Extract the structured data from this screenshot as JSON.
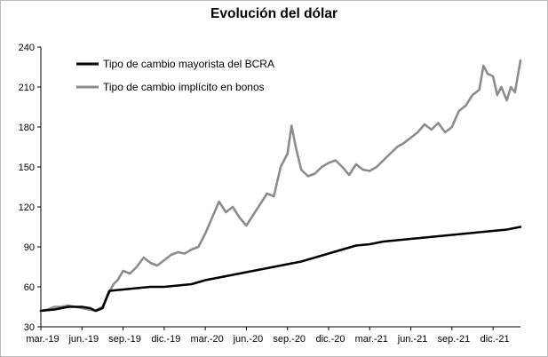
{
  "chart_data": {
    "type": "line",
    "title": "Evolución del dólar",
    "xlabel": "",
    "ylabel": "",
    "ylim": [
      30,
      240
    ],
    "yticks": [
      30,
      60,
      90,
      120,
      150,
      180,
      210,
      240
    ],
    "xlim": [
      0,
      35
    ],
    "xtick_labels": [
      "mar.-19",
      "jun.-19",
      "sep.-19",
      "dic.-19",
      "mar.-20",
      "jun.-20",
      "sep.-20",
      "dic.-20",
      "mar.-21",
      "jun.-21",
      "sep.-21",
      "dic.-21"
    ],
    "xtick_positions": [
      0,
      3,
      6,
      9,
      12,
      15,
      18,
      21,
      24,
      27,
      30,
      33
    ],
    "series": [
      {
        "name": "Tipo de cambio mayorista del BCRA",
        "color": "#000000",
        "x": [
          0,
          1,
          2,
          3,
          3.6,
          4,
          4.5,
          5,
          6,
          7,
          8,
          9,
          10,
          11,
          12,
          13,
          14,
          15,
          16,
          17,
          18,
          19,
          20,
          21,
          22,
          23,
          24,
          25,
          26,
          27,
          28,
          29,
          30,
          31,
          32,
          33,
          34,
          35
        ],
        "values": [
          42,
          43,
          45,
          45,
          44,
          42,
          44,
          57,
          58,
          59,
          60,
          60,
          61,
          62,
          65,
          67,
          69,
          71,
          73,
          75,
          77,
          79,
          82,
          85,
          88,
          91,
          92,
          94,
          95,
          96,
          97,
          98,
          99,
          100,
          101,
          102,
          103,
          105
        ]
      },
      {
        "name": "Tipo de cambio implícito en bonos",
        "color": "#8c8c8c",
        "x": [
          0,
          0.5,
          1,
          1.5,
          2,
          2.5,
          3,
          3.5,
          4,
          4.5,
          5,
          5.3,
          5.6,
          6,
          6.5,
          7,
          7.5,
          8,
          8.5,
          9,
          9.5,
          10,
          10.5,
          11,
          11.5,
          12,
          12.5,
          13,
          13.5,
          14,
          14.5,
          15,
          15.5,
          16,
          16.5,
          17,
          17.5,
          18,
          18.3,
          18.6,
          19,
          19.5,
          20,
          20.5,
          21,
          21.5,
          22,
          22.5,
          23,
          23.5,
          24,
          24.5,
          25,
          25.5,
          26,
          26.5,
          27,
          27.5,
          28,
          28.5,
          29,
          29.5,
          30,
          30.5,
          31,
          31.5,
          32,
          32.3,
          32.6,
          33,
          33.3,
          33.6,
          34,
          34.3,
          34.6,
          35
        ],
        "values": [
          42,
          43,
          45,
          45,
          46,
          45,
          44,
          43,
          42,
          45,
          56,
          62,
          65,
          72,
          70,
          75,
          82,
          78,
          76,
          80,
          84,
          86,
          85,
          88,
          90,
          100,
          112,
          124,
          116,
          120,
          112,
          106,
          114,
          122,
          130,
          128,
          150,
          160,
          181,
          165,
          148,
          143,
          145,
          150,
          153,
          155,
          150,
          144,
          152,
          148,
          147,
          150,
          155,
          160,
          165,
          168,
          172,
          176,
          182,
          178,
          183,
          176,
          180,
          192,
          196,
          204,
          208,
          226,
          220,
          218,
          204,
          210,
          200,
          210,
          206,
          230
        ]
      }
    ],
    "legend": {
      "entries": [
        "Tipo de cambio mayorista del BCRA",
        "Tipo de cambio implícito en bonos"
      ],
      "placement": "top-left"
    },
    "grid": false
  }
}
